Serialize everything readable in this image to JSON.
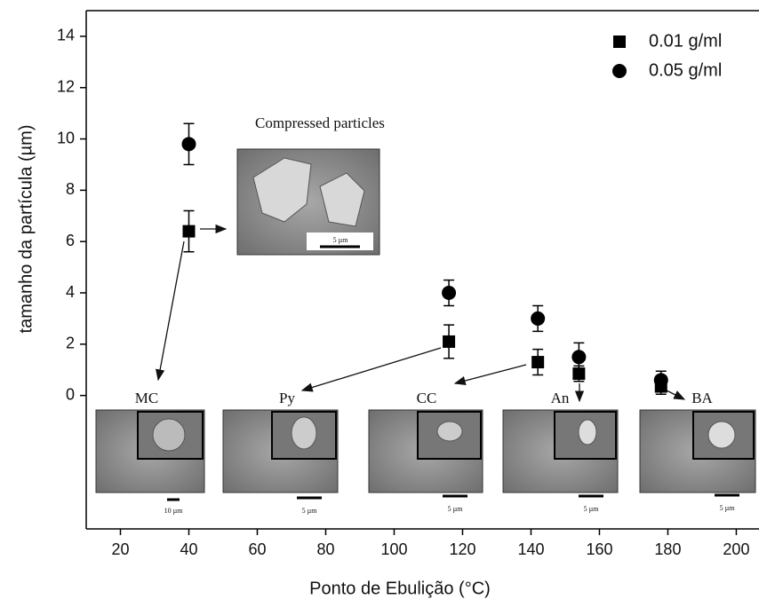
{
  "chart_data": {
    "type": "scatter",
    "xlabel": "Ponto de Ebulição (°C)",
    "ylabel": "tamanho da partícula  (µm)",
    "xlim": [
      10,
      205
    ],
    "ylim": [
      -5.2,
      15
    ],
    "xticks": [
      20,
      40,
      60,
      80,
      100,
      120,
      140,
      160,
      180,
      200
    ],
    "yticks": [
      0,
      2,
      4,
      6,
      8,
      10,
      12,
      14
    ],
    "legend": "top-right",
    "series": [
      {
        "name": "0.01 g/ml",
        "color": "#000000",
        "marker": "square",
        "x": [
          40,
          116,
          142,
          154,
          178
        ],
        "values": [
          6.4,
          2.1,
          1.3,
          0.85,
          0.35
        ],
        "errors": [
          0.8,
          0.65,
          0.5,
          0.3,
          0.3
        ]
      },
      {
        "name": "0.05 g/ml",
        "color": "#000000",
        "marker": "circle",
        "x": [
          40,
          116,
          142,
          154,
          178
        ],
        "values": [
          9.8,
          4.0,
          3.0,
          1.5,
          0.6
        ],
        "errors": [
          0.8,
          0.5,
          0.5,
          0.55,
          0.35
        ]
      }
    ],
    "annotations": [
      "Compressed particles",
      "MC",
      "Py",
      "CC",
      "An",
      "BA"
    ],
    "scale_labels": [
      "5 µm",
      "10 µm",
      "5 µm",
      "5 µm",
      "5 µm",
      "5 µm"
    ]
  }
}
